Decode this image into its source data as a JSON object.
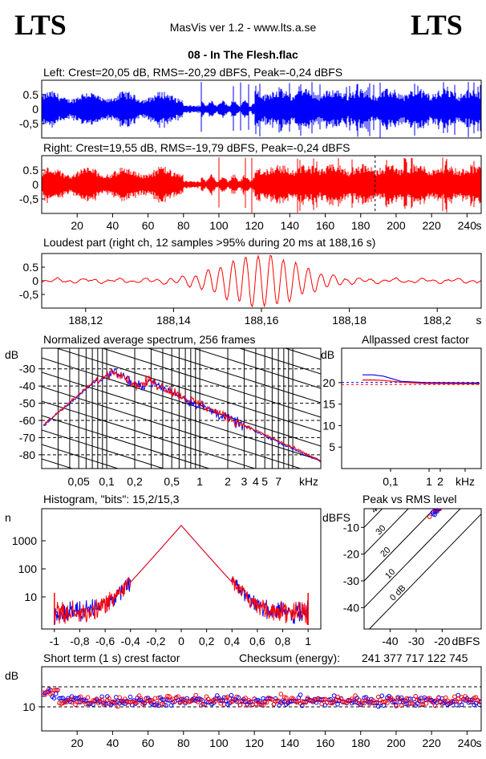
{
  "header": {
    "logo_left": "LTS",
    "logo_right": "LTS",
    "app_title": "MasVis ver 1.2 - www.lts.a.se",
    "file_title": "08 - In The Flesh.flac"
  },
  "colors": {
    "left": "#0000ff",
    "right": "#ff0000",
    "frame": "#000000"
  },
  "chart_data": [
    {
      "id": "left-waveform",
      "type": "area",
      "title": "Left: Crest=20,05 dB, RMS=-20,29 dBFS, Peak=-0,24 dBFS",
      "yticks": [
        "0.5",
        "0",
        "-0,5"
      ],
      "ylim": [
        -1,
        1
      ],
      "xlim": [
        0,
        248
      ],
      "series": [
        {
          "name": "Left",
          "color": "#0000ff"
        }
      ]
    },
    {
      "id": "right-waveform",
      "type": "area",
      "title": "Right: Crest=19,55 dB, RMS=-19,79 dBFS, Peak=-0,24 dBFS",
      "yticks": [
        "0.5",
        "0",
        "-0,5"
      ],
      "ylim": [
        -1,
        1
      ],
      "xlim": [
        0,
        248
      ],
      "xticks": [
        "20",
        "40",
        "60",
        "80",
        "100",
        "120",
        "140",
        "160",
        "180",
        "200",
        "220",
        "240"
      ],
      "xunit": "s",
      "marker_x": 188.16,
      "series": [
        {
          "name": "Right",
          "color": "#ff0000"
        }
      ]
    },
    {
      "id": "loudest-part",
      "type": "line",
      "title": "Loudest part (right ch, 12 samples >95% during 20 ms at 188,16 s)",
      "yticks": [
        "0.5",
        "0",
        "-0,5"
      ],
      "ylim": [
        -1,
        1
      ],
      "xlim": [
        188.11,
        188.21
      ],
      "xticks": [
        "188,12",
        "188,14",
        "188,16",
        "188,18",
        "188,2"
      ],
      "xunit": "s"
    },
    {
      "id": "spectrum",
      "type": "line",
      "title": "Normalized average spectrum, 256 frames",
      "ylabel": "dB",
      "yticks": [
        "-30",
        "-40",
        "-50",
        "-60",
        "-70",
        "-80"
      ],
      "ylim": [
        -88,
        -18
      ],
      "xscale": "log",
      "xticks": [
        "0,05",
        "0,1",
        "0,2",
        "0,5",
        "1",
        "2",
        "3",
        "4",
        "5",
        "7",
        "kHz"
      ],
      "series": [
        {
          "name": "Left",
          "color": "#0000ff"
        },
        {
          "name": "Right",
          "color": "#ff0000"
        }
      ]
    },
    {
      "id": "allpassed-crest",
      "type": "line",
      "title": "Allpassed crest factor",
      "ylabel": "dB",
      "yticks": [
        "20",
        "15",
        "10",
        "5"
      ],
      "ylim": [
        0,
        28
      ],
      "xscale": "log",
      "xticks": [
        "0,1",
        "1",
        "2",
        "kHz"
      ],
      "reference_levels": [
        20.05,
        19.55
      ],
      "series": [
        {
          "name": "Left",
          "color": "#0000ff",
          "values": [
            21.8,
            21.8,
            21.5,
            20.3,
            20.0,
            19.9
          ]
        },
        {
          "name": "Right",
          "color": "#ff0000",
          "values": [
            20.6,
            20.6,
            20.5,
            20.1,
            19.8,
            19.7
          ]
        }
      ]
    },
    {
      "id": "histogram",
      "type": "line",
      "title": "Histogram, \"bits\": 15,2/15,3",
      "ylabel": "n",
      "yscale": "log",
      "yticks": [
        "1000",
        "100",
        "10"
      ],
      "xlim": [
        -1.1,
        1.1
      ],
      "xticks": [
        "-1",
        "-0,8",
        "-0,6",
        "-0,4",
        "-0,2",
        "0",
        "0,2",
        "0,4",
        "0,6",
        "0,8",
        "1"
      ],
      "peak_count": 3500
    },
    {
      "id": "peak-vs-rms",
      "type": "scatter",
      "title": "Peak vs RMS level",
      "ylabel": "dBFS",
      "yticks": [
        "-10",
        "-20",
        "-30",
        "-40"
      ],
      "xticks": [
        "-40",
        "-30",
        "-20",
        "dBFS"
      ],
      "diagonal_labels": [
        "40",
        "30",
        "20",
        "10",
        "0 dB"
      ]
    },
    {
      "id": "short-term-crest",
      "type": "scatter",
      "title": "Short term (1 s) crest factor",
      "checksum_label": "Checksum (energy):",
      "checksum_value": "241 377 717 122 745",
      "ylabel": "dB",
      "yticks": [
        "10"
      ],
      "xlim": [
        0,
        248
      ],
      "xticks": [
        "20",
        "40",
        "60",
        "80",
        "100",
        "120",
        "140",
        "160",
        "180",
        "200",
        "220",
        "240"
      ],
      "xunit": "s"
    }
  ]
}
